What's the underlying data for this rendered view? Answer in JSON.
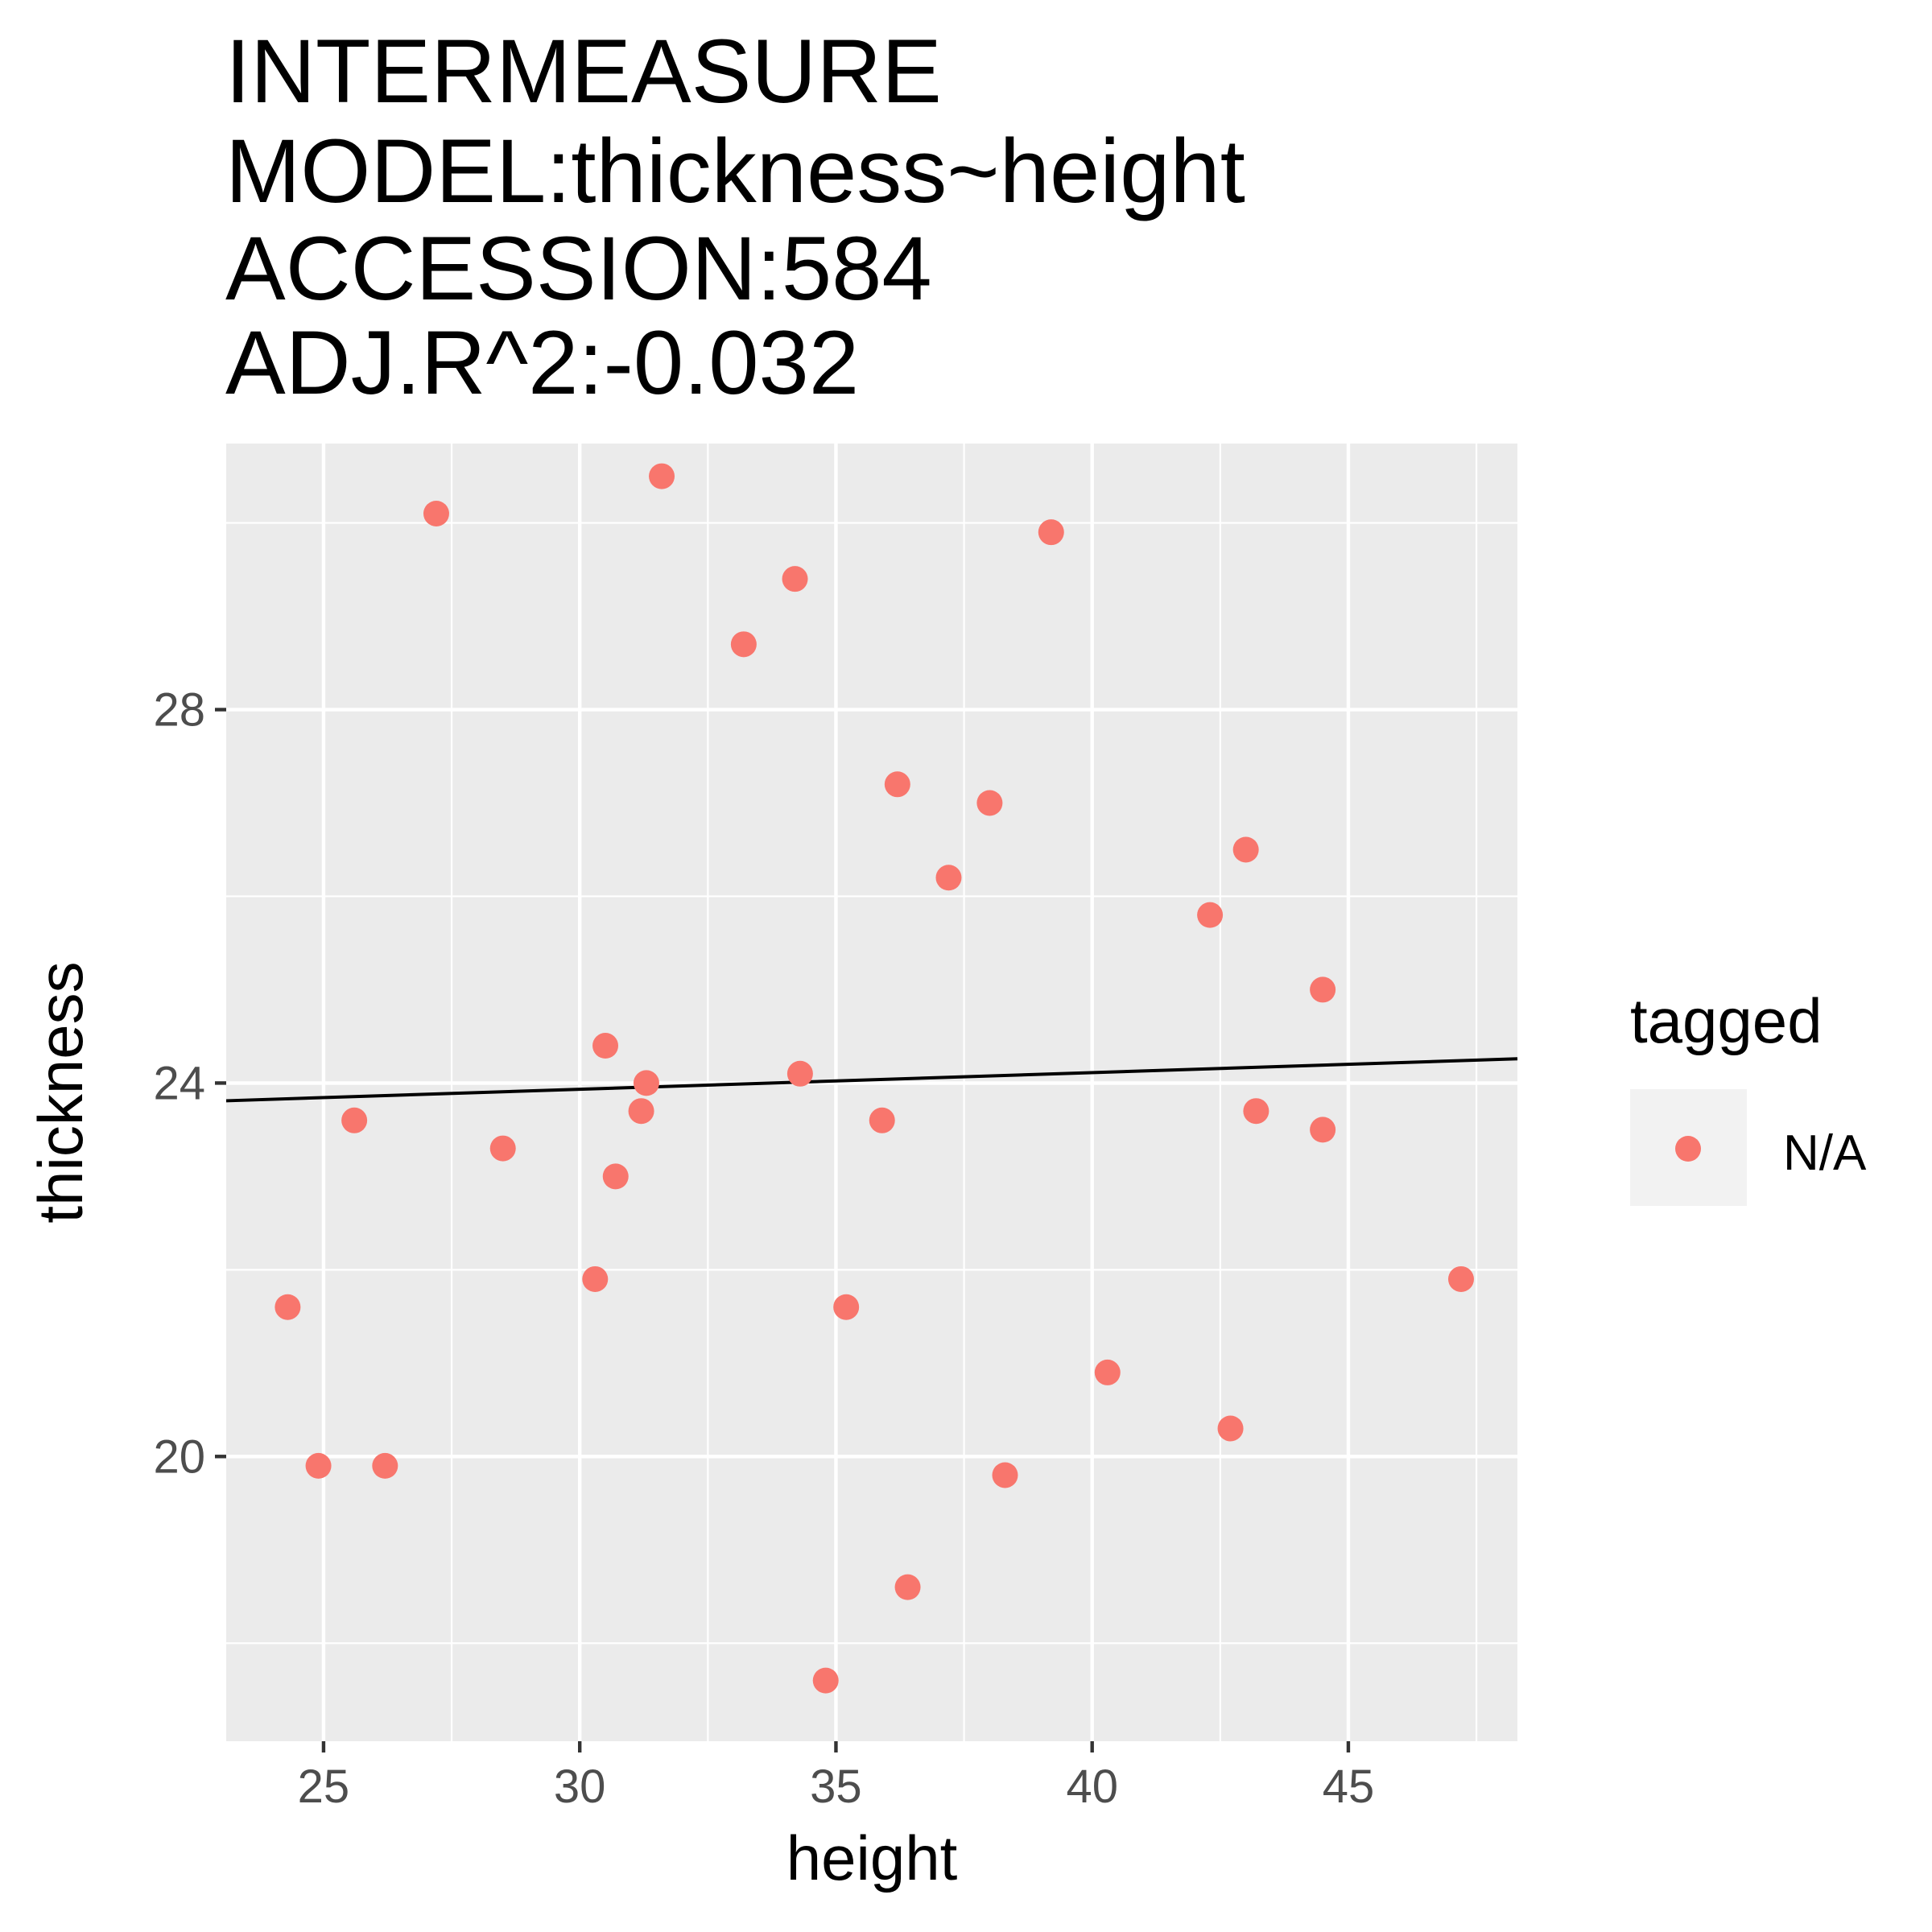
{
  "chart_data": {
    "type": "scatter",
    "title_lines": [
      "INTERMEASURE",
      "MODEL:thickness~height",
      "ACCESSION:584",
      "ADJ.R^2:-0.032"
    ],
    "xlabel": "height",
    "ylabel": "thickness",
    "xlim": [
      23.1,
      48.3
    ],
    "ylim": [
      16.95,
      30.85
    ],
    "x_ticks": [
      25,
      30,
      35,
      40,
      45
    ],
    "x_tick_labels": [
      "25",
      "30",
      "35",
      "40",
      "45"
    ],
    "y_ticks": [
      20,
      24,
      28
    ],
    "y_tick_labels": [
      "20",
      "24",
      "28"
    ],
    "grid": true,
    "legend": {
      "title": "tagged",
      "placement": "right",
      "entries": [
        {
          "label": "N/A",
          "color": "#f8766d"
        }
      ]
    },
    "series": [
      {
        "name": "N/A",
        "color": "#f8766d",
        "points": [
          [
            24.3,
            21.6
          ],
          [
            24.9,
            19.9
          ],
          [
            25.6,
            23.6
          ],
          [
            26.2,
            19.9
          ],
          [
            27.2,
            30.1
          ],
          [
            28.5,
            23.3
          ],
          [
            30.3,
            21.9
          ],
          [
            30.5,
            24.4
          ],
          [
            30.7,
            23.0
          ],
          [
            31.2,
            23.7
          ],
          [
            31.3,
            24.0
          ],
          [
            31.6,
            30.5
          ],
          [
            33.2,
            28.7
          ],
          [
            34.2,
            29.4
          ],
          [
            34.3,
            24.1
          ],
          [
            34.8,
            17.6
          ],
          [
            35.2,
            21.6
          ],
          [
            35.9,
            23.6
          ],
          [
            36.2,
            27.2
          ],
          [
            36.4,
            18.6
          ],
          [
            37.2,
            26.2
          ],
          [
            38.0,
            27.0
          ],
          [
            38.3,
            19.8
          ],
          [
            39.2,
            29.9
          ],
          [
            40.3,
            20.9
          ],
          [
            42.3,
            25.8
          ],
          [
            42.7,
            20.3
          ],
          [
            43.0,
            26.5
          ],
          [
            43.2,
            23.7
          ],
          [
            44.5,
            25.0
          ],
          [
            44.5,
            23.5
          ],
          [
            47.2,
            21.9
          ]
        ]
      }
    ],
    "fit_line": {
      "x": [
        23.1,
        48.3
      ],
      "y": [
        23.81,
        24.26
      ],
      "color": "#000000"
    },
    "colors": {
      "panel_background": "#ebebeb",
      "grid": "#ffffff",
      "point": "#f8766d",
      "legend_key_background": "#f2f2f2"
    }
  }
}
